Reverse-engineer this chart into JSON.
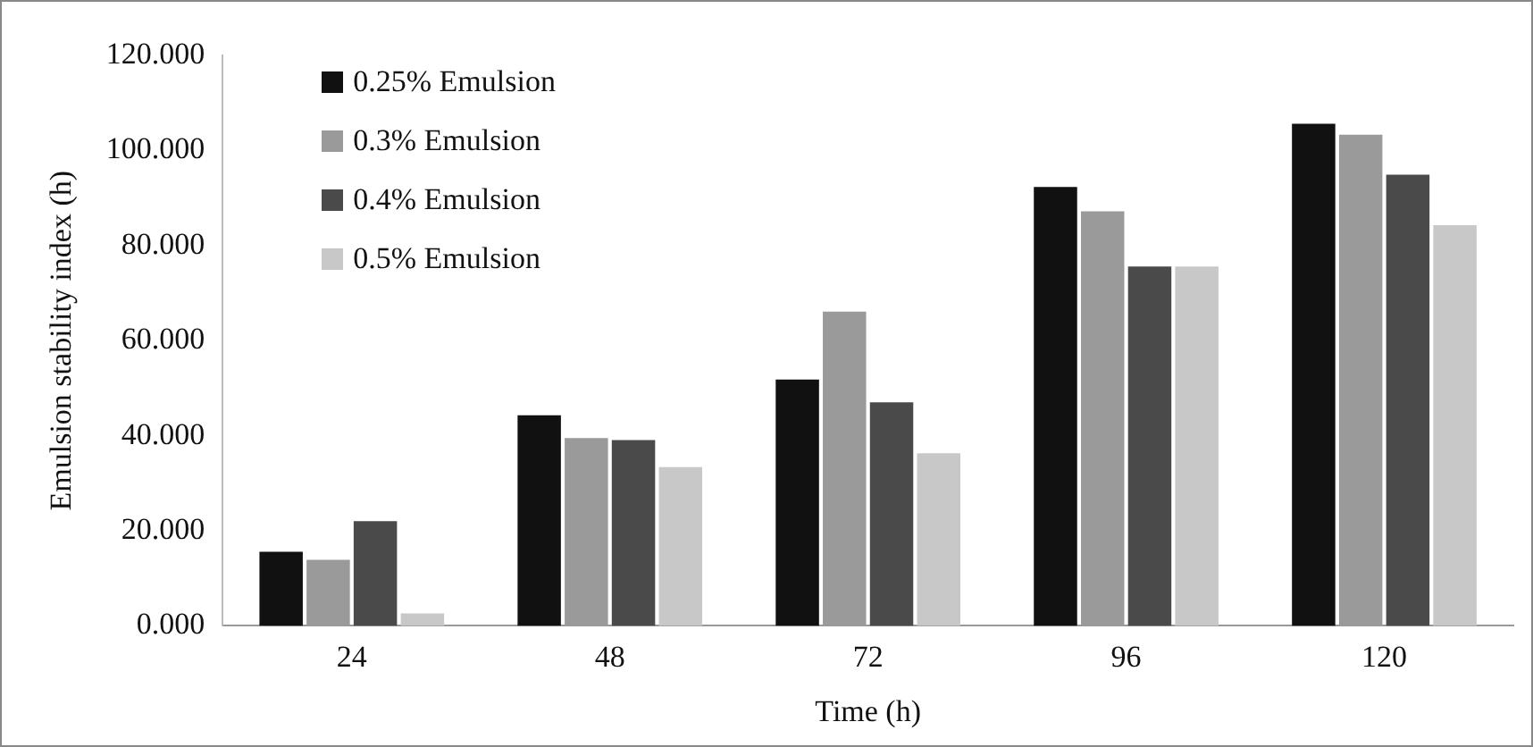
{
  "chart_data": {
    "type": "bar",
    "xlabel": "Time (h)",
    "ylabel": "Emulsion stability index (h)",
    "categories": [
      "24",
      "48",
      "72",
      "96",
      "120"
    ],
    "series": [
      {
        "name": "0.25% Emulsion",
        "color": "#111111",
        "values": [
          15.6,
          44.3,
          51.8,
          92.3,
          105.6
        ]
      },
      {
        "name": "0.3% Emulsion",
        "color": "#9a9a9a",
        "values": [
          13.9,
          39.5,
          66.1,
          87.2,
          103.3
        ]
      },
      {
        "name": "0.4% Emulsion",
        "color": "#4a4a4a",
        "values": [
          22.0,
          39.1,
          47.0,
          75.6,
          94.9
        ]
      },
      {
        "name": "0.5% Emulsion",
        "color": "#c8c8c8",
        "values": [
          2.6,
          33.4,
          36.3,
          75.6,
          84.3
        ]
      }
    ],
    "ylim": [
      0,
      120
    ],
    "yticks": [
      {
        "value": 0,
        "label": "0.000"
      },
      {
        "value": 20,
        "label": "20.000"
      },
      {
        "value": 40,
        "label": "40.000"
      },
      {
        "value": 60,
        "label": "60.000"
      },
      {
        "value": 80,
        "label": "80.000"
      },
      {
        "value": 100,
        "label": "100.000"
      },
      {
        "value": 120,
        "label": "120.000"
      }
    ],
    "grid": false,
    "legend": "top left"
  }
}
